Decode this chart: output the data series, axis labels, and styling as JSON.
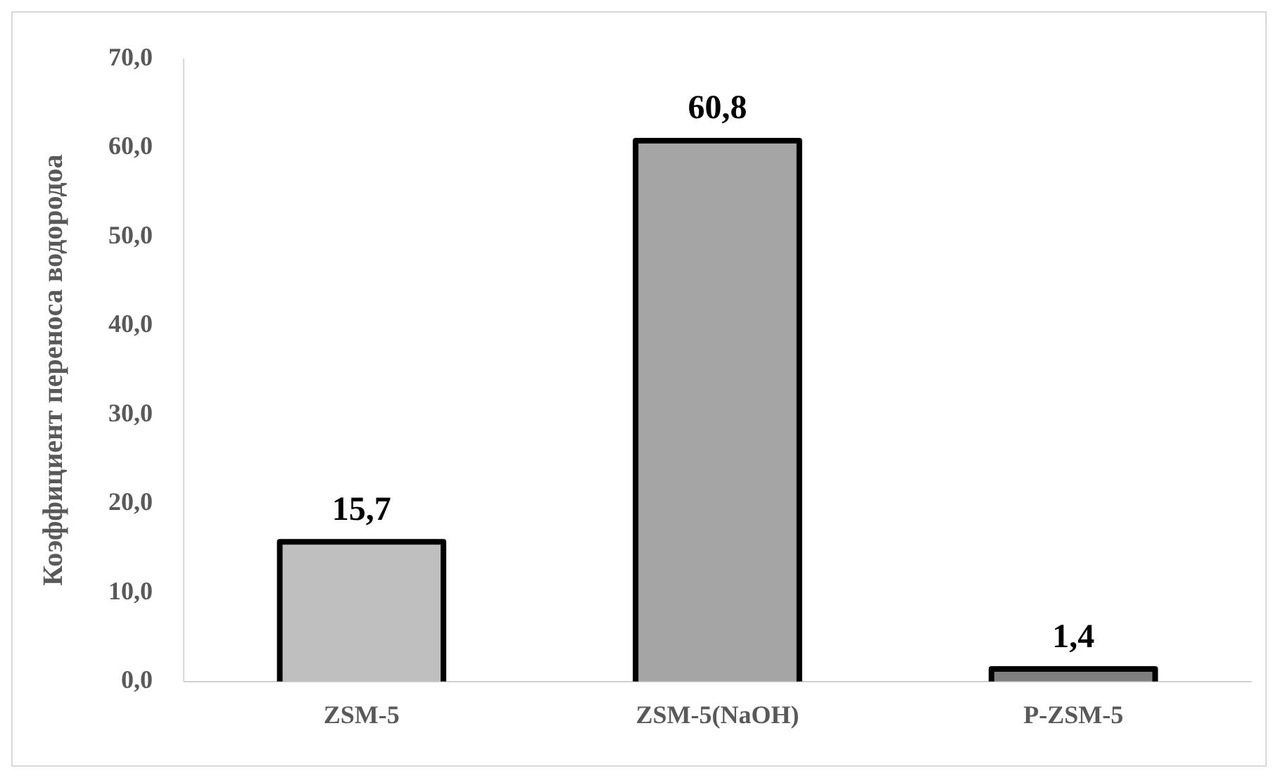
{
  "chart_data": {
    "type": "bar",
    "ylabel": "Коэффициент переноса водородоа",
    "categories": [
      "ZSM-5",
      "ZSM-5(NaOH)",
      "P-ZSM-5"
    ],
    "values": [
      15.7,
      60.8,
      1.4
    ],
    "colors": [
      "#bfbfbf",
      "#a5a5a5",
      "#7f7f7f"
    ],
    "value_labels": [
      "15,7",
      "60,8",
      "1,4"
    ],
    "ylim": [
      0,
      70
    ],
    "yticks": [
      {
        "value": 0,
        "label": "0,0"
      },
      {
        "value": 10,
        "label": "10,0"
      },
      {
        "value": 20,
        "label": "20,0"
      },
      {
        "value": 30,
        "label": "30,0"
      },
      {
        "value": 40,
        "label": "40,0"
      },
      {
        "value": 50,
        "label": "50,0"
      },
      {
        "value": 60,
        "label": "60,0"
      },
      {
        "value": 70,
        "label": "70,0"
      }
    ],
    "grid": false,
    "legend": false
  }
}
